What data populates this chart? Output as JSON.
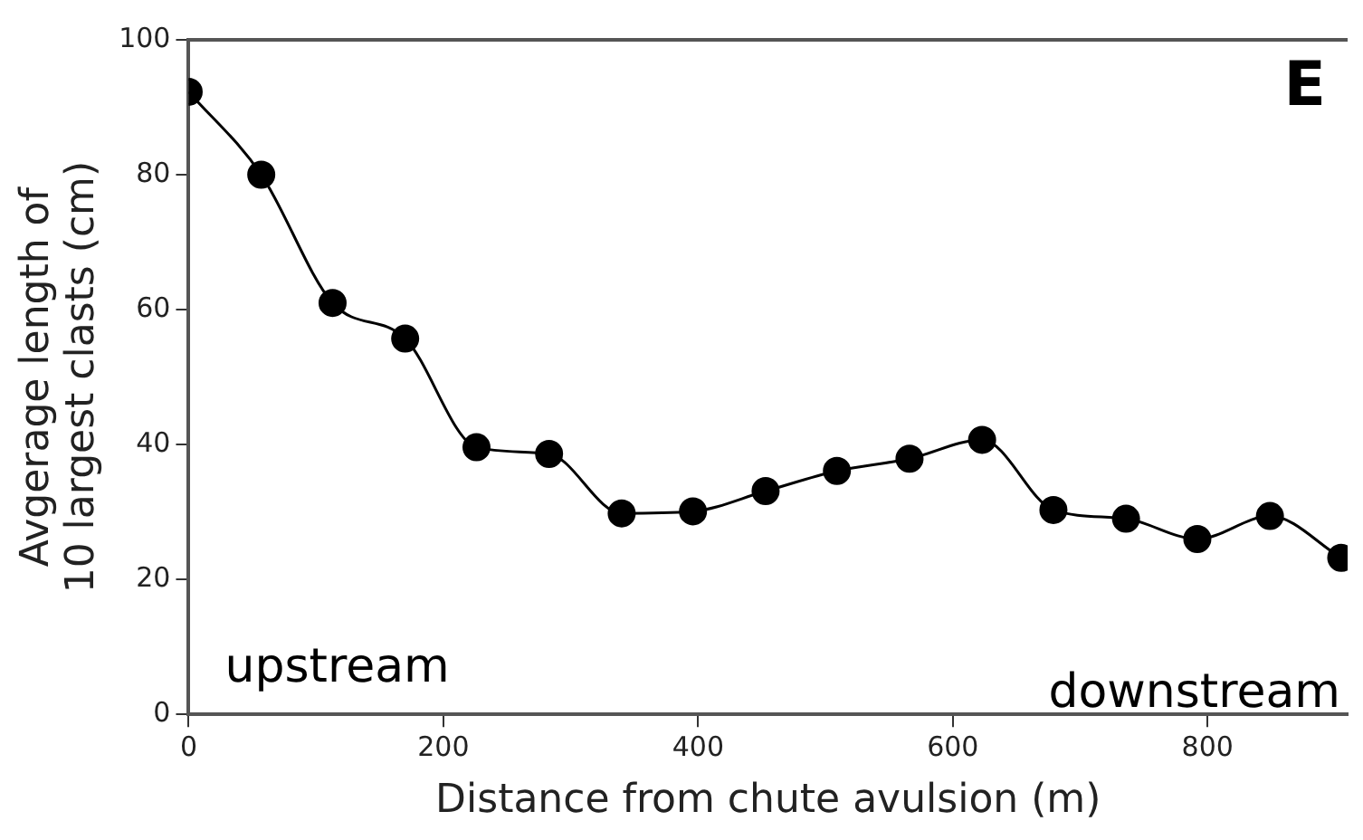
{
  "chart_data": {
    "type": "line",
    "xlabel": "Distance from chute avulsion (m)",
    "ylabel": "Avgerage length of 10 largest clasts (cm)",
    "annotations": [
      "E",
      "upstream",
      "downstream"
    ],
    "x": [
      0,
      57,
      113,
      170,
      226,
      283,
      340,
      396,
      453,
      509,
      566,
      623,
      679,
      736,
      792,
      849,
      905
    ],
    "series": [
      {
        "color": "#000000",
        "values": [
          92.3,
          80.0,
          61.0,
          55.7,
          39.6,
          38.6,
          29.8,
          30.1,
          33.1,
          36.1,
          37.9,
          40.7,
          30.3,
          29.0,
          26.0,
          29.4,
          23.2
        ]
      }
    ],
    "xlim": [
      0,
      910
    ],
    "xticks": [
      0,
      200,
      400,
      600,
      800
    ],
    "ylim": [
      0,
      100
    ],
    "yticks": [
      0,
      20,
      40,
      60,
      80,
      100
    ],
    "grid": false,
    "legend": false,
    "marker": "circle",
    "line_style": "solid"
  }
}
